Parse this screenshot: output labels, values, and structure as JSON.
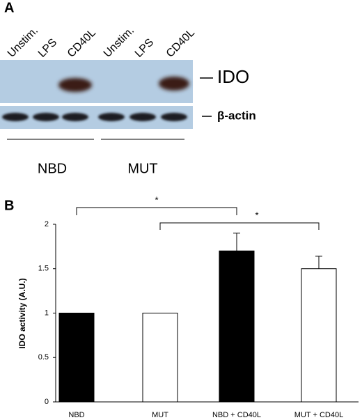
{
  "panel_a": {
    "label": "A",
    "lanes": [
      "Unstim.",
      "LPS",
      "CD40L",
      "Unstim.",
      "LPS",
      "CD40L"
    ],
    "bands": [
      "IDO",
      "β-actin"
    ],
    "groups": [
      "NBD",
      "MUT"
    ]
  },
  "chart_data": {
    "type": "bar",
    "panel_label": "B",
    "y_label": "IDO activity (A.U.)",
    "categories": [
      "NBD",
      "MUT",
      "NBD + CD40L",
      "MUT + CD40L"
    ],
    "values": [
      1,
      1,
      1.7,
      1.5
    ],
    "errors": [
      0,
      0,
      0.2,
      0.14
    ],
    "colors": [
      "#000000",
      "#ffffff",
      "#000000",
      "#ffffff"
    ],
    "ylim": [
      0,
      2
    ],
    "yticks": [
      0,
      0.5,
      1,
      1.5,
      2
    ],
    "annotations": [
      "*",
      "*"
    ]
  }
}
